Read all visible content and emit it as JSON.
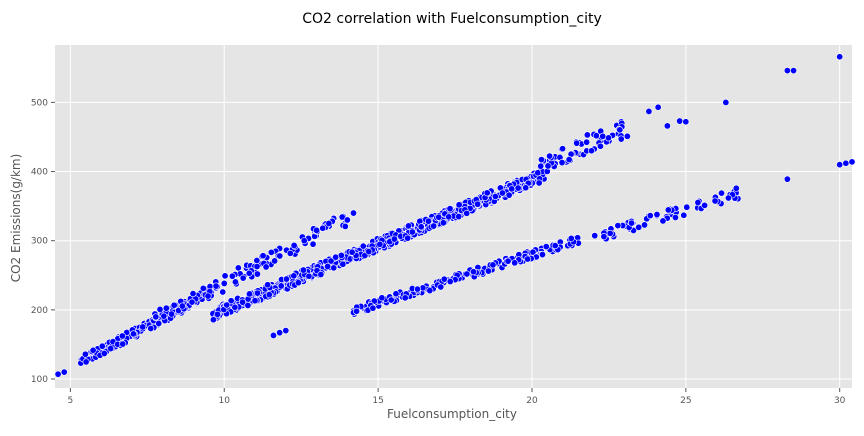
{
  "chart_data": {
    "type": "scatter",
    "title": "CO2 correlation with Fuelconsumption_city",
    "xlabel": "Fuelconsumption_city",
    "ylabel": "CO2 Emissions(g/km)",
    "xlim": [
      4.5,
      30.4
    ],
    "ylim": [
      87,
      583
    ],
    "xticks": [
      5,
      10,
      15,
      20,
      25,
      30
    ],
    "yticks": [
      100,
      200,
      300,
      400,
      500
    ],
    "grid": true,
    "legend": false,
    "colors": {
      "background": "#E5E5E5",
      "grid": "#FFFFFF",
      "point": "#0000FF",
      "point_edge": "#FFFFFF",
      "text": "#555555"
    },
    "series": [
      {
        "bands": [
          {
            "x0": 5.3,
            "x1": 9.6,
            "slope": 23.5,
            "intercept": 0,
            "spread": 7,
            "count": 160
          },
          {
            "x0": 9.6,
            "x1": 20.4,
            "slope": 18.7,
            "intercept": 14,
            "spread": 9,
            "count": 650
          },
          {
            "x0": 20.2,
            "x1": 23.0,
            "slope": 20.5,
            "intercept": -8,
            "spread": 12,
            "count": 60
          },
          {
            "x0": 7.6,
            "x1": 14.0,
            "slope": 23.5,
            "intercept": 3,
            "spread": 12,
            "count": 120
          },
          {
            "x0": 14.2,
            "x1": 21.6,
            "slope": 14.0,
            "intercept": 0,
            "spread": 6,
            "count": 160
          },
          {
            "x0": 22.0,
            "x1": 26.8,
            "slope": 14.0,
            "intercept": -5,
            "spread": 8,
            "count": 60
          }
        ],
        "points": [
          [
            4.6,
            107
          ],
          [
            4.8,
            110
          ],
          [
            11.6,
            163
          ],
          [
            11.8,
            167
          ],
          [
            12.0,
            170
          ],
          [
            14.2,
            196
          ],
          [
            14.3,
            198
          ],
          [
            14.2,
            340
          ],
          [
            14.0,
            330
          ],
          [
            13.4,
            325
          ],
          [
            13.2,
            318
          ],
          [
            13.0,
            315
          ],
          [
            12.6,
            300
          ],
          [
            21.8,
            453
          ],
          [
            22.3,
            451
          ],
          [
            22.9,
            447
          ],
          [
            23.1,
            451
          ],
          [
            23.8,
            487
          ],
          [
            24.1,
            493
          ],
          [
            24.4,
            466
          ],
          [
            24.8,
            473
          ],
          [
            25.0,
            472
          ],
          [
            26.3,
            500
          ],
          [
            28.3,
            389
          ],
          [
            28.3,
            546
          ],
          [
            28.5,
            546
          ],
          [
            30.0,
            410
          ],
          [
            30.0,
            566
          ],
          [
            30.2,
            412
          ],
          [
            30.4,
            414
          ],
          [
            30.5,
            416
          ]
        ]
      }
    ]
  }
}
